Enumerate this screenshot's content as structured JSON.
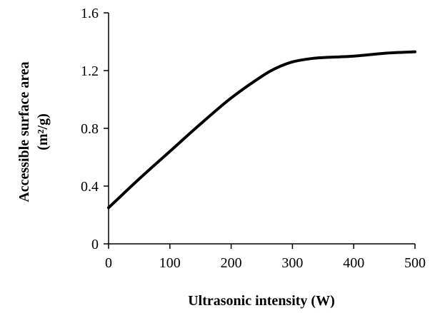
{
  "chart_data": {
    "type": "line",
    "title": "",
    "xlabel": "Ultrasonic intensity (W)",
    "ylabel_line1": "Accessible surface area",
    "ylabel_line2": "(m²/g)",
    "xlim": [
      0,
      500
    ],
    "ylim": [
      0,
      1.6
    ],
    "x_ticks": [
      "0",
      "100",
      "200",
      "300",
      "400",
      "500"
    ],
    "y_ticks": [
      "0",
      "0.4",
      "0.8",
      "1.2",
      "1.6"
    ],
    "grid": false,
    "legend": "none",
    "series": [
      {
        "color": "#000000",
        "x": [
          0,
          50,
          100,
          150,
          200,
          250,
          275,
          300,
          325,
          350,
          400,
          450,
          500
        ],
        "y": [
          0.25,
          0.45,
          0.64,
          0.83,
          1.01,
          1.16,
          1.22,
          1.26,
          1.28,
          1.29,
          1.3,
          1.32,
          1.33
        ]
      }
    ]
  }
}
